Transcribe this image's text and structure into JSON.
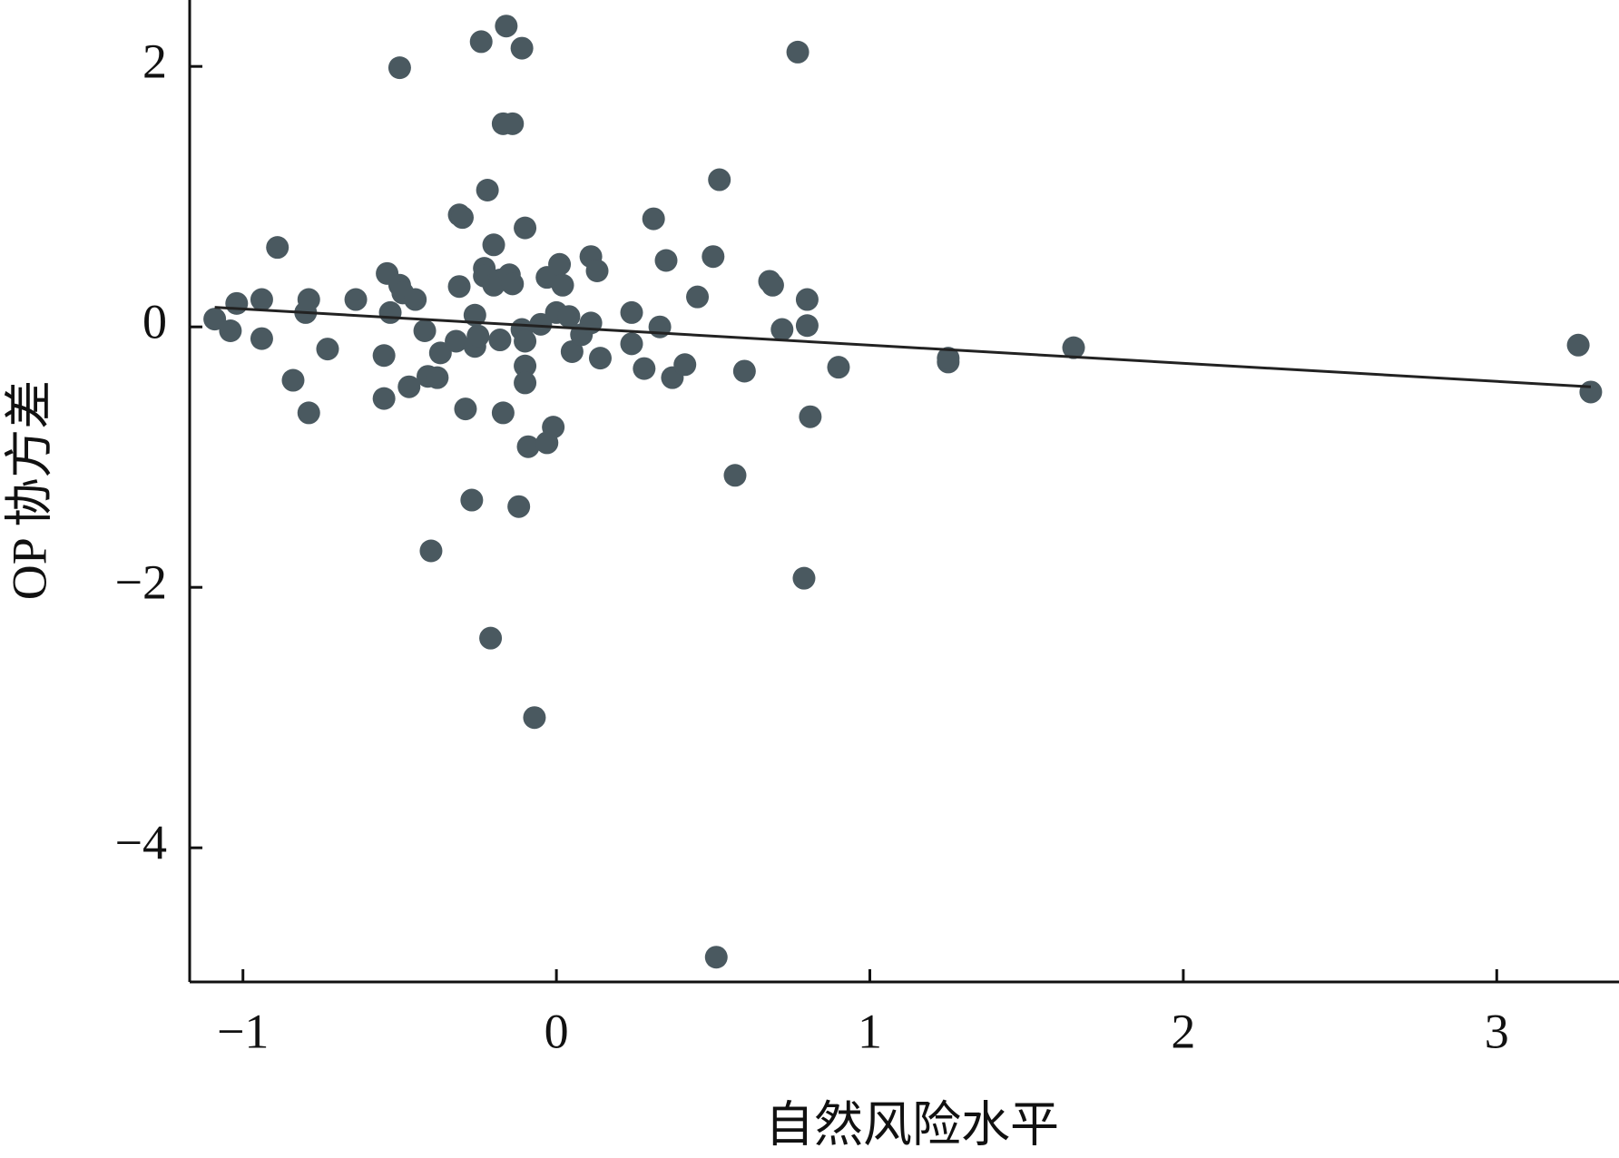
{
  "chart_data": {
    "type": "scatter",
    "xlabel": "自然风险水平",
    "ylabel": "OP 协方差",
    "xlim": [
      -1.17,
      3.39
    ],
    "ylim": [
      -5.03,
      2.51
    ],
    "xticks": [
      {
        "value": -1,
        "label": "−1"
      },
      0,
      1,
      2,
      3
    ],
    "yticks": [
      {
        "value": -4,
        "label": "−4"
      },
      {
        "value": -2,
        "label": "−2"
      },
      0,
      2
    ],
    "color": "#4a5960",
    "line_color": "#222",
    "x": [
      -1.09,
      -1.04,
      -1.02,
      -0.94,
      -0.94,
      -0.89,
      -0.84,
      -0.8,
      -0.79,
      -0.79,
      -0.73,
      -0.64,
      -0.55,
      -0.55,
      -0.54,
      -0.53,
      -0.5,
      -0.5,
      -0.49,
      -0.47,
      -0.45,
      -0.42,
      -0.4,
      -0.41,
      -0.38,
      -0.37,
      -0.31,
      -0.31,
      -0.3,
      -0.29,
      -0.32,
      -0.27,
      -0.26,
      -0.26,
      -0.25,
      -0.24,
      -0.23,
      -0.23,
      -0.22,
      -0.21,
      -0.2,
      -0.2,
      -0.18,
      -0.18,
      -0.17,
      -0.17,
      -0.16,
      -0.15,
      -0.14,
      -0.14,
      -0.12,
      -0.11,
      -0.11,
      -0.1,
      -0.1,
      -0.1,
      -0.1,
      -0.09,
      -0.07,
      -0.05,
      -0.03,
      -0.03,
      -0.01,
      0.0,
      0.01,
      0.02,
      0.04,
      0.05,
      0.08,
      0.11,
      0.11,
      0.13,
      0.14,
      0.24,
      0.24,
      0.28,
      0.31,
      0.33,
      0.35,
      0.37,
      0.41,
      0.45,
      0.5,
      0.51,
      0.52,
      0.57,
      0.6,
      0.68,
      0.69,
      0.72,
      0.77,
      0.79,
      0.8,
      0.8,
      0.81,
      0.9,
      1.25,
      1.25,
      1.65,
      3.26,
      3.3
    ],
    "y": [
      0.06,
      -0.03,
      0.18,
      0.21,
      -0.09,
      0.61,
      -0.41,
      0.11,
      0.21,
      -0.66,
      -0.17,
      0.21,
      -0.55,
      -0.22,
      0.41,
      0.11,
      0.32,
      1.99,
      0.26,
      -0.46,
      0.21,
      -0.03,
      -1.72,
      -0.38,
      -0.39,
      -0.2,
      0.86,
      0.31,
      0.84,
      -0.63,
      -0.11,
      -1.33,
      0.09,
      -0.15,
      -0.07,
      2.19,
      0.45,
      0.39,
      1.05,
      -2.39,
      0.63,
      0.32,
      -0.1,
      0.36,
      1.56,
      -0.66,
      2.31,
      0.4,
      0.33,
      1.56,
      -1.38,
      -0.02,
      2.14,
      -0.3,
      -0.43,
      -0.11,
      0.76,
      -0.92,
      -3.0,
      0.02,
      -0.89,
      0.38,
      -0.77,
      0.11,
      0.48,
      0.32,
      0.08,
      -0.19,
      -0.06,
      0.54,
      0.03,
      0.43,
      -0.24,
      0.11,
      -0.13,
      -0.32,
      0.83,
      0.0,
      0.51,
      -0.39,
      -0.29,
      0.23,
      0.54,
      -4.84,
      1.13,
      -1.14,
      -0.34,
      0.35,
      0.32,
      -0.02,
      2.11,
      -1.93,
      0.21,
      0.01,
      -0.69,
      -0.31,
      -0.27,
      -0.24,
      -0.16,
      -0.14,
      -0.5
    ],
    "trendline": {
      "x": [
        -1.09,
        3.3
      ],
      "y": [
        0.15,
        -0.46
      ]
    }
  }
}
